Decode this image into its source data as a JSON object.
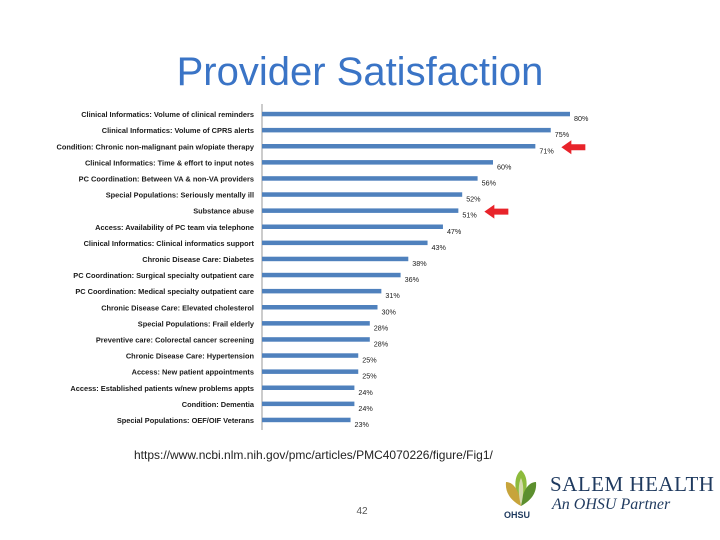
{
  "slide": {
    "title": "Provider Satisfaction",
    "source_url": "https://www.ncbi.nlm.nih.gov/pmc/articles/PMC4070226/figure/Fig1/",
    "page_number": "42"
  },
  "logo": {
    "name": "SALEM HEALTH",
    "tagline": "An OHSU Partner",
    "mark_text": "OHSU"
  },
  "colors": {
    "title": "#3a74c6",
    "bar": "#4f81bd",
    "arrow": "#e8232a",
    "brand": "#1f3a5f"
  },
  "chart_data": {
    "type": "bar",
    "orientation": "horizontal",
    "title": "",
    "xlabel": "",
    "ylabel": "",
    "xlim": [
      0,
      80
    ],
    "grid": false,
    "categories": [
      "Clinical Informatics: Volume of clinical reminders",
      "Clinical Informatics: Volume of CPRS alerts",
      "Condition: Chronic non-malignant pain w/opiate therapy",
      "Clinical Informatics: Time & effort to input notes",
      "PC Coordination: Between VA & non-VA providers",
      "Special Populations: Seriously mentally ill",
      "Substance abuse",
      "Access: Availability of PC team via telephone",
      "Clinical Informatics: Clinical informatics support",
      "Chronic Disease Care: Diabetes",
      "PC Coordination: Surgical specialty outpatient care",
      "PC Coordination: Medical specialty outpatient care",
      "Chronic Disease Care: Elevated cholesterol",
      "Special Populations: Frail elderly",
      "Preventive care: Colorectal cancer screening",
      "Chronic Disease Care: Hypertension",
      "Access: New patient appointments",
      "Access: Established patients w/new problems appts",
      "Condition: Dementia",
      "Special Populations: OEF/OIF Veterans"
    ],
    "values": [
      80,
      75,
      71,
      60,
      56,
      52,
      51,
      47,
      43,
      38,
      36,
      31,
      30,
      28,
      28,
      25,
      25,
      24,
      24,
      23
    ],
    "data_labels": [
      "80%",
      "75%",
      "71%",
      "60%",
      "56%",
      "52%",
      "51%",
      "47%",
      "43%",
      "38%",
      "36%",
      "31%",
      "30%",
      "28%",
      "28%",
      "25%",
      "25%",
      "24%",
      "24%",
      "23%"
    ],
    "highlighted_categories": [
      2,
      6
    ]
  }
}
